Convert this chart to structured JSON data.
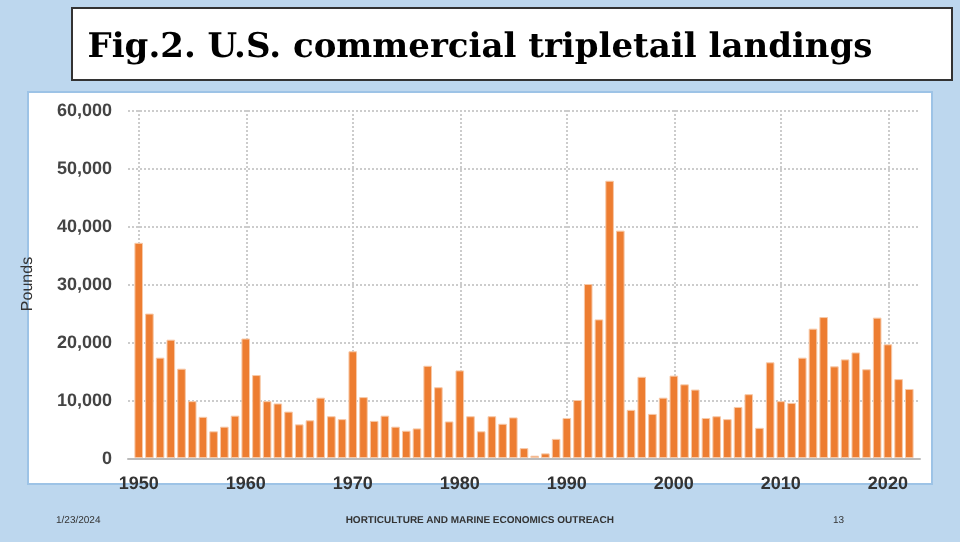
{
  "chart_data": {
    "type": "bar",
    "title": "Fig.2. U.S. commercial tripletail landings",
    "ylabel": "Pounds",
    "color": "#ed7d31",
    "x": [
      1950,
      1951,
      1952,
      1953,
      1954,
      1955,
      1956,
      1957,
      1958,
      1959,
      1960,
      1961,
      1962,
      1963,
      1964,
      1965,
      1966,
      1967,
      1968,
      1969,
      1970,
      1971,
      1972,
      1973,
      1974,
      1975,
      1976,
      1977,
      1978,
      1979,
      1980,
      1981,
      1982,
      1983,
      1984,
      1985,
      1986,
      1987,
      1988,
      1989,
      1990,
      1991,
      1992,
      1993,
      1994,
      1995,
      1996,
      1997,
      1998,
      1999,
      2000,
      2001,
      2002,
      2003,
      2004,
      2005,
      2006,
      2007,
      2008,
      2009,
      2010,
      2011,
      2012,
      2013,
      2014,
      2015,
      2016,
      2017,
      2018,
      2019,
      2020,
      2021,
      2022
    ],
    "values": [
      37100,
      24900,
      17300,
      20400,
      15400,
      9800,
      7100,
      4600,
      5400,
      7300,
      20600,
      14300,
      9800,
      9400,
      8000,
      5800,
      6500,
      10400,
      7200,
      6700,
      18400,
      10500,
      6400,
      7300,
      5400,
      4700,
      5100,
      15900,
      12200,
      6300,
      15100,
      7200,
      4600,
      7200,
      5900,
      7000,
      1700,
      400,
      800,
      3300,
      6900,
      10000,
      30000,
      23900,
      47800,
      39200,
      8300,
      14000,
      7600,
      10400,
      14200,
      12700,
      11800,
      6900,
      7200,
      6700,
      8800,
      11000,
      5200,
      16500,
      9800,
      9500,
      17300,
      22300,
      24300,
      15800,
      17000,
      18200,
      15300,
      24200,
      19600,
      13600,
      11900
    ],
    "xlim": [
      1949,
      2023
    ],
    "xticks": [
      1950,
      1960,
      1970,
      1980,
      1990,
      2000,
      2010,
      2020
    ],
    "ylim": [
      0,
      60000
    ],
    "yticks": [
      0,
      {
        "value": 10000,
        "label": "10,000"
      },
      {
        "value": 20000,
        "label": "20,000"
      },
      {
        "value": 30000,
        "label": "30,000"
      },
      {
        "value": 40000,
        "label": "40,000"
      },
      {
        "value": 50000,
        "label": "50,000"
      },
      {
        "value": 60000,
        "label": "60,000"
      }
    ],
    "grid": true,
    "line_style": "dotted",
    "annotations": [
      "1/23/2024",
      "HORTICULTURE AND MARINE ECONOMICS OUTREACH",
      "13"
    ]
  }
}
